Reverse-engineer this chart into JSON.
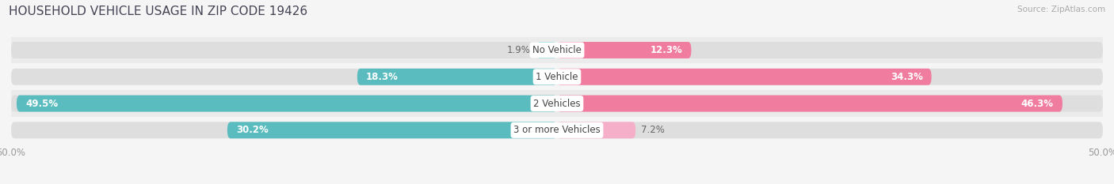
{
  "title": "HOUSEHOLD VEHICLE USAGE IN ZIP CODE 19426",
  "source": "Source: ZipAtlas.com",
  "categories": [
    "No Vehicle",
    "1 Vehicle",
    "2 Vehicles",
    "3 or more Vehicles"
  ],
  "owner_values": [
    1.9,
    18.3,
    49.5,
    30.2
  ],
  "renter_values": [
    12.3,
    34.3,
    46.3,
    7.2
  ],
  "owner_color": "#5bbcbf",
  "renter_color": "#f07ca0",
  "renter_color_light": "#f5afc8",
  "axis_limit": 50.0,
  "bar_height": 0.62,
  "title_fontsize": 11,
  "label_fontsize": 8.5,
  "tick_fontsize": 8.5,
  "cat_fontsize": 8.5,
  "legend_fontsize": 8.5,
  "background_color": "#f5f5f5",
  "row_bg_even": "#ebebeb",
  "row_bg_odd": "#f5f5f5"
}
